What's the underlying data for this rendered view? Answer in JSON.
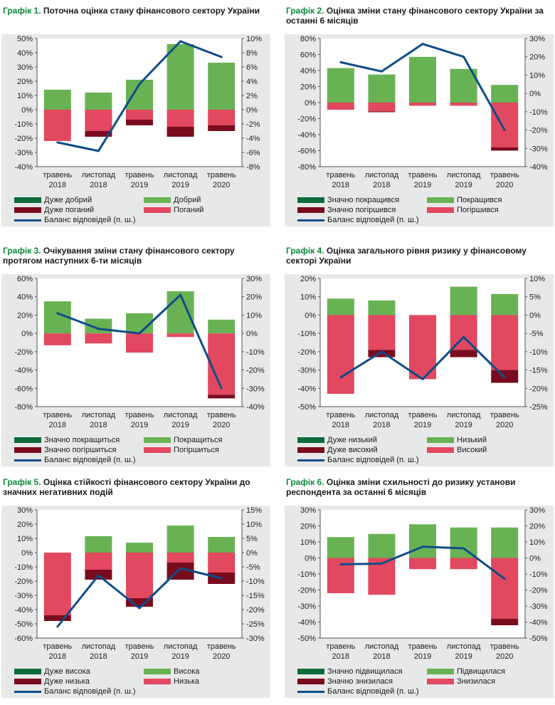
{
  "colors": {
    "very_good": "#0e6b3a",
    "good": "#69b254",
    "very_bad": "#7a0b1e",
    "bad": "#e2485f",
    "balance": "#0e4d87",
    "title_prefix": "#0a8a3a",
    "plot_bg": "#e7e8e8"
  },
  "x_categories": [
    [
      "травень",
      "2018"
    ],
    [
      "листопад",
      "2018"
    ],
    [
      "травень",
      "2019"
    ],
    [
      "листопад",
      "2019"
    ],
    [
      "травень",
      "2020"
    ]
  ],
  "panels": [
    {
      "prefix": "Графік 1.",
      "title": "Поточна оцінка стану фінансового сектору України",
      "legend": {
        "very_pos": "Дуже добрий",
        "pos": "Добрий",
        "very_neg": "Дуже поганий",
        "neg": "Поганий",
        "balance": "Баланс відповідей (п. ш.)"
      },
      "left_ticks": [
        "50%",
        "40%",
        "30%",
        "20%",
        "10%",
        "0%",
        "-10%",
        "-20%",
        "-30%",
        "-40%"
      ],
      "right_ticks": [
        "10%",
        "8%",
        "6%",
        "4%",
        "2%",
        "0%",
        "-2%",
        "-4%",
        "-6%",
        "-8%"
      ]
    },
    {
      "prefix": "Графік 2.",
      "title": "Оцінка зміни стану фінансового сектору України за останні 6 місяців",
      "legend": {
        "very_pos": "Значно покращився",
        "pos": "Покращився",
        "very_neg": "Значно погіршився",
        "neg": "Погіршився",
        "balance": "Баланс відповідей (п. ш.)"
      },
      "left_ticks": [
        "80%",
        "60%",
        "40%",
        "20%",
        "0%",
        "-20%",
        "-40%",
        "-60%",
        "-80%"
      ],
      "right_ticks": [
        "30%",
        "20%",
        "10%",
        "0%",
        "-10%",
        "-20%",
        "-30%",
        "-40%"
      ]
    },
    {
      "prefix": "Графік 3.",
      "title": "Очікування зміни стану фінансового сектору протягом наступних 6-ти місяців",
      "legend": {
        "very_pos": "Значно покращиться",
        "pos": "Покращиться",
        "very_neg": "Значно погіршиться",
        "neg": "Погіршиться",
        "balance": "Баланс відповідей (п. ш.)"
      },
      "left_ticks": [
        "60%",
        "40%",
        "20%",
        "0%",
        "-20%",
        "-40%",
        "-60%",
        "-80%"
      ],
      "right_ticks": [
        "30%",
        "20%",
        "10%",
        "0%",
        "-10%",
        "-20%",
        "-30%",
        "-40%"
      ]
    },
    {
      "prefix": "Графік 4.",
      "title": "Оцінка загального рівня ризику у фінансовому секторі України",
      "legend": {
        "very_pos": "Дуже низький",
        "pos": "Низький",
        "very_neg": "Дуже високий",
        "neg": "Високий",
        "balance": "Баланс відповідей (п. ш.)"
      },
      "left_ticks": [
        "20%",
        "10%",
        "0%",
        "-10%",
        "-20%",
        "-30%",
        "-40%",
        "-50%"
      ],
      "right_ticks": [
        "10%",
        "5%",
        "0%",
        "-5%",
        "-10%",
        "-15%",
        "-20%",
        "-25%"
      ]
    },
    {
      "prefix": "Графік 5.",
      "title": "Оцінка стійкості фінансового сектору України до значних негативних подій",
      "legend": {
        "very_pos": "Дуже висока",
        "pos": "Висока",
        "very_neg": "Дуже низька",
        "neg": "Низька",
        "balance": "Баланс відповідей (п. ш.)"
      },
      "left_ticks": [
        "30%",
        "20%",
        "10%",
        "0%",
        "-10%",
        "-20%",
        "-30%",
        "-40%",
        "-50%",
        "-60%"
      ],
      "right_ticks": [
        "15%",
        "10%",
        "5%",
        "0%",
        "-5%",
        "-10%",
        "-15%",
        "-20%",
        "-25%",
        "-30%"
      ]
    },
    {
      "prefix": "Графік 6.",
      "title": "Оцінка зміни схильності до ризику установи респондента за останні 6 місяців",
      "legend": {
        "very_pos": "Значно підвищилася",
        "pos": "Підвищилася",
        "very_neg": "Значно знизилася",
        "neg": "Знизилася",
        "balance": "Баланс відповідей (п. ш.)"
      },
      "left_ticks": [
        "30%",
        "20%",
        "10%",
        "0%",
        "-10%",
        "-20%",
        "-30%",
        "-40%",
        "-50%"
      ],
      "right_ticks": [
        "30%",
        "20%",
        "10%",
        "0%",
        "-10%",
        "-20%",
        "-30%",
        "-40%",
        "-50%"
      ]
    }
  ],
  "chart_data": [
    {
      "type": "bar",
      "title": "Графік 1. Поточна оцінка стану фінансового сектору України",
      "categories": [
        "травень 2018",
        "листопад 2018",
        "травень 2019",
        "листопад 2019",
        "травень 2020"
      ],
      "ylim": [
        -40,
        50
      ],
      "y2lim": [
        -8,
        10
      ],
      "series": [
        {
          "name": "Дуже добрий",
          "axis": "left",
          "values": [
            0,
            0,
            0,
            0,
            0
          ]
        },
        {
          "name": "Добрий",
          "axis": "left",
          "values": [
            14,
            12,
            21,
            46,
            33
          ]
        },
        {
          "name": "Дуже поганий",
          "axis": "left",
          "values": [
            0,
            -4,
            -4,
            -7,
            -4
          ]
        },
        {
          "name": "Поганий",
          "axis": "left",
          "values": [
            -22,
            -15,
            -7,
            -12,
            -11
          ]
        },
        {
          "name": "Баланс відповідей (п. ш.)",
          "axis": "right",
          "type": "line",
          "values": [
            -4.6,
            -5.8,
            3.6,
            9.6,
            7.4
          ]
        }
      ]
    },
    {
      "type": "bar",
      "title": "Графік 2. Оцінка зміни стану фінансового сектору України за останні 6 місяців",
      "categories": [
        "травень 2018",
        "листопад 2018",
        "травень 2019",
        "листопад 2019",
        "травень 2020"
      ],
      "ylim": [
        -80,
        80
      ],
      "y2lim": [
        -40,
        30
      ],
      "series": [
        {
          "name": "Значно покращився",
          "axis": "left",
          "values": [
            0,
            0,
            0,
            0,
            0
          ]
        },
        {
          "name": "Покращився",
          "axis": "left",
          "values": [
            43,
            35,
            57,
            42,
            22
          ]
        },
        {
          "name": "Значно погіршився",
          "axis": "left",
          "values": [
            0,
            -1,
            0,
            0,
            -4
          ]
        },
        {
          "name": "Погіршився",
          "axis": "left",
          "values": [
            -9,
            -11,
            -4,
            -4,
            -56
          ]
        },
        {
          "name": "Баланс відповідей (п. ш.)",
          "axis": "right",
          "type": "line",
          "values": [
            17,
            12,
            27,
            20,
            -20
          ]
        }
      ]
    },
    {
      "type": "bar",
      "title": "Графік 3. Очікування зміни стану фінансового сектору протягом наступних 6-ти місяців",
      "categories": [
        "травень 2018",
        "листопад 2018",
        "травень 2019",
        "листопад 2019",
        "травень 2020"
      ],
      "ylim": [
        -80,
        60
      ],
      "y2lim": [
        -40,
        30
      ],
      "series": [
        {
          "name": "Значно покращиться",
          "axis": "left",
          "values": [
            0,
            0,
            0,
            0,
            0
          ]
        },
        {
          "name": "Покращиться",
          "axis": "left",
          "values": [
            35,
            16,
            22,
            46,
            15
          ]
        },
        {
          "name": "Значно погіршиться",
          "axis": "left",
          "values": [
            0,
            0,
            0,
            0,
            -4
          ]
        },
        {
          "name": "Погіршиться",
          "axis": "left",
          "values": [
            -13,
            -11,
            -21,
            -4,
            -67
          ]
        },
        {
          "name": "Баланс відповідей (п. ш.)",
          "axis": "right",
          "type": "line",
          "values": [
            11,
            2.5,
            0,
            21,
            -30
          ]
        }
      ]
    },
    {
      "type": "bar",
      "title": "Графік 4. Оцінка загального рівня ризику у фінансовому секторі України",
      "categories": [
        "травень 2018",
        "листопад 2018",
        "травень 2019",
        "листопад 2019",
        "травень 2020"
      ],
      "ylim": [
        -50,
        20
      ],
      "y2lim": [
        -25,
        10
      ],
      "series": [
        {
          "name": "Дуже низький",
          "axis": "left",
          "values": [
            0,
            0,
            0,
            0,
            0
          ]
        },
        {
          "name": "Низький",
          "axis": "left",
          "values": [
            9,
            8,
            0,
            15.5,
            11.5
          ]
        },
        {
          "name": "Дуже високий",
          "axis": "left",
          "values": [
            0,
            -4,
            0,
            -4,
            -7
          ]
        },
        {
          "name": "Високий",
          "axis": "left",
          "values": [
            -43,
            -19,
            -35,
            -19,
            -30
          ]
        },
        {
          "name": "Баланс відповідей (п. ш.)",
          "axis": "right",
          "type": "line",
          "values": [
            -17,
            -10,
            -17.5,
            -6,
            -17
          ]
        }
      ]
    },
    {
      "type": "bar",
      "title": "Графік 5. Оцінка стійкості фінансового сектору України до значних негативних подій",
      "categories": [
        "травень 2018",
        "листопад 2018",
        "травень 2019",
        "листопад 2019",
        "травень 2020"
      ],
      "ylim": [
        -60,
        30
      ],
      "y2lim": [
        -30,
        15
      ],
      "series": [
        {
          "name": "Дуже висока",
          "axis": "left",
          "values": [
            0,
            0,
            0,
            0,
            0
          ]
        },
        {
          "name": "Висока",
          "axis": "left",
          "values": [
            0,
            11.5,
            7,
            19,
            11
          ]
        },
        {
          "name": "Дуже низька",
          "axis": "left",
          "values": [
            -4,
            -7,
            -6,
            -12,
            -8
          ]
        },
        {
          "name": "Низька",
          "axis": "left",
          "values": [
            -44,
            -12,
            -32,
            -7,
            -14
          ]
        },
        {
          "name": "Баланс відповідей (п. ш.)",
          "axis": "right",
          "type": "line",
          "values": [
            -26,
            -8,
            -19.5,
            -5.5,
            -9
          ]
        }
      ]
    },
    {
      "type": "bar",
      "title": "Графік 6. Оцінка зміни схильності до ризику установи респондента за останні 6 місяців",
      "categories": [
        "травень 2018",
        "листопад 2018",
        "травень 2019",
        "листопад 2019",
        "травень 2020"
      ],
      "ylim": [
        -50,
        30
      ],
      "y2lim": [
        -50,
        30
      ],
      "series": [
        {
          "name": "Значно підвищилася",
          "axis": "left",
          "values": [
            0,
            0,
            0,
            0,
            0
          ]
        },
        {
          "name": "Підвищилася",
          "axis": "left",
          "values": [
            13,
            15,
            21,
            19,
            19
          ]
        },
        {
          "name": "Значно знизилася",
          "axis": "left",
          "values": [
            0,
            0,
            0,
            0,
            -4
          ]
        },
        {
          "name": "Знизилася",
          "axis": "left",
          "values": [
            -22,
            -23,
            -7,
            -7,
            -38
          ]
        },
        {
          "name": "Баланс відповідей (п. ш.)",
          "axis": "right",
          "type": "line",
          "values": [
            -4,
            -3.5,
            7,
            6,
            -13
          ]
        }
      ]
    }
  ]
}
